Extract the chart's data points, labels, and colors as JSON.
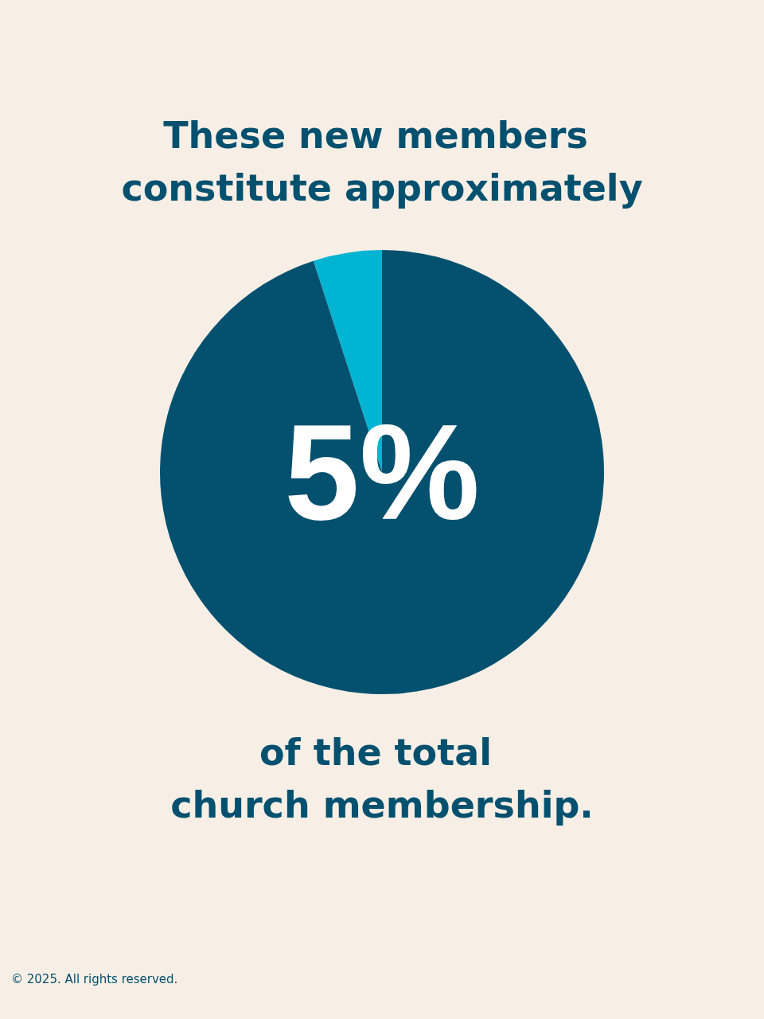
{
  "chart_data": {
    "type": "pie",
    "title": "These new members constitute approximately",
    "categories": [
      null,
      null
    ],
    "values": [
      5,
      95
    ],
    "colors": [
      "#00b4d2",
      "#03506f"
    ],
    "value_labels": [
      "5%",
      null
    ],
    "annotations": [
      "of the total church membership.",
      "© 2025. All rights reserved."
    ]
  }
}
